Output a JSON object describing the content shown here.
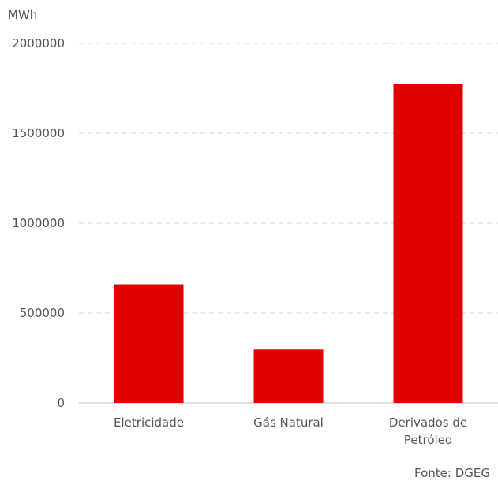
{
  "chart_data": {
    "type": "bar",
    "ylabel": "MWh",
    "categories": [
      "Eletricidade",
      "Gás Natural",
      "Derivados de Petróleo"
    ],
    "category_lines": [
      [
        "Eletricidade"
      ],
      [
        "Gás Natural"
      ],
      [
        "Derivados de",
        "Petróleo"
      ]
    ],
    "values": [
      660000,
      297000,
      1775000
    ],
    "yticks": [
      0,
      500000,
      1000000,
      1500000,
      2000000
    ],
    "ylim": [
      0,
      2000000
    ],
    "grid": true,
    "bar_color": "#e00000",
    "source": "Fonte: DGEG"
  }
}
